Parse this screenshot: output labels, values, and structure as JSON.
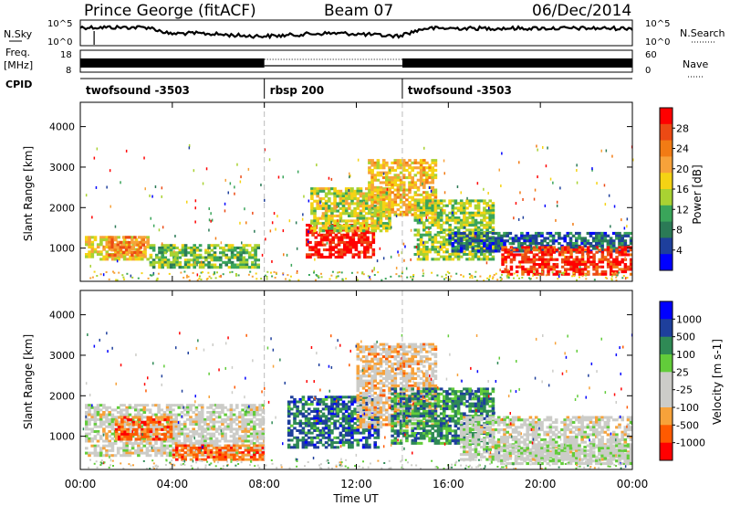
{
  "header": {
    "station": "Prince George (fitACF)",
    "beam": "Beam 07",
    "date": "06/Dec/2014"
  },
  "top_panels": {
    "nsky_label": "N.Sky",
    "nsearch_label": "N.Search",
    "freq_label_1": "Freq.",
    "freq_label_2": "[MHz]",
    "nave_label": "Nave",
    "cpid_label": "CPID",
    "nsky_left_ticks": [
      "10^5",
      "10^0"
    ],
    "nsky_right_ticks": [
      "10^5",
      "10^0"
    ],
    "freq_left_ticks": [
      "18",
      "8"
    ],
    "freq_right_ticks": [
      "60",
      "0"
    ]
  },
  "cpid_segments": [
    {
      "label": "twofsound -3503",
      "start_h": 0,
      "end_h": 8
    },
    {
      "label": "rbsp 200",
      "start_h": 8,
      "end_h": 14
    },
    {
      "label": "twofsound -3503",
      "start_h": 14,
      "end_h": 24
    }
  ],
  "chart_data": [
    {
      "type": "heatmap",
      "name": "power",
      "ylabel": "Slant Range [km]",
      "xlabel": "",
      "ylim": [
        180,
        4600
      ],
      "yticks": [
        1000,
        2000,
        3000,
        4000
      ],
      "xlim": [
        0,
        24
      ],
      "colorbar_label": "Power [dB]",
      "colorbar_ticks": [
        "28",
        "24",
        "20",
        "16",
        "12",
        "8",
        "4"
      ],
      "colorscale": [
        "#0000ff",
        "#1e3f9c",
        "#2b7a56",
        "#3aa55a",
        "#a9d232",
        "#f5d314",
        "#f7a23a",
        "#f27b14",
        "#ec4a14",
        "#ff0000"
      ],
      "regions": [
        {
          "x": [
            0.2,
            3
          ],
          "r": [
            700,
            1300
          ],
          "level": 0.55
        },
        {
          "x": [
            1.2,
            2.8
          ],
          "r": [
            800,
            1300
          ],
          "level": 0.75
        },
        {
          "x": [
            3,
            7.8
          ],
          "r": [
            500,
            1100
          ],
          "level": 0.4
        },
        {
          "x": [
            9.8,
            12.8
          ],
          "r": [
            750,
            1600
          ],
          "level": 0.95
        },
        {
          "x": [
            10,
            13.5
          ],
          "r": [
            1400,
            2500
          ],
          "level": 0.5
        },
        {
          "x": [
            12.5,
            15.5
          ],
          "r": [
            1800,
            3200
          ],
          "level": 0.6
        },
        {
          "x": [
            14.5,
            18
          ],
          "r": [
            700,
            2200
          ],
          "level": 0.45
        },
        {
          "x": [
            16,
            24
          ],
          "r": [
            900,
            1400
          ],
          "level": 0.2
        },
        {
          "x": [
            18.3,
            24
          ],
          "r": [
            330,
            1050
          ],
          "level": 0.9
        }
      ]
    },
    {
      "type": "heatmap",
      "name": "velocity",
      "ylabel": "Slant Range [km]",
      "xlabel": "Time UT",
      "ylim": [
        180,
        4600
      ],
      "yticks": [
        1000,
        2000,
        3000,
        4000
      ],
      "xlim": [
        0,
        24
      ],
      "xtick_labels": [
        "00:00",
        "04:00",
        "08:00",
        "12:00",
        "16:00",
        "20:00",
        "00:00"
      ],
      "colorbar_label": "Velocity [m s-1]",
      "colorbar_ticks": [
        "1000",
        "500",
        "100",
        "25",
        "-25",
        "-100",
        "-500",
        "-1000"
      ],
      "colorscale": [
        "#ff0000",
        "#ff5a00",
        "#f7a23a",
        "#ccccc8",
        "#ccccc8",
        "#62cc3a",
        "#2f8a55",
        "#1e3f9c",
        "#0000ff"
      ],
      "regions": [
        {
          "x": [
            0.2,
            8
          ],
          "r": [
            500,
            1800
          ],
          "level": 0.45
        },
        {
          "x": [
            1.5,
            4
          ],
          "r": [
            900,
            1500
          ],
          "level": 0.2
        },
        {
          "x": [
            4,
            8
          ],
          "r": [
            400,
            800
          ],
          "level": 0.2
        },
        {
          "x": [
            9,
            13
          ],
          "r": [
            700,
            2000
          ],
          "level": 0.78
        },
        {
          "x": [
            12,
            15.5
          ],
          "r": [
            1200,
            3300
          ],
          "level": 0.35
        },
        {
          "x": [
            13.5,
            18
          ],
          "r": [
            800,
            2200
          ],
          "level": 0.72
        },
        {
          "x": [
            16.5,
            24
          ],
          "r": [
            400,
            1500
          ],
          "level": 0.45
        },
        {
          "x": [
            18,
            24
          ],
          "r": [
            300,
            800
          ],
          "level": 0.48
        }
      ]
    }
  ]
}
